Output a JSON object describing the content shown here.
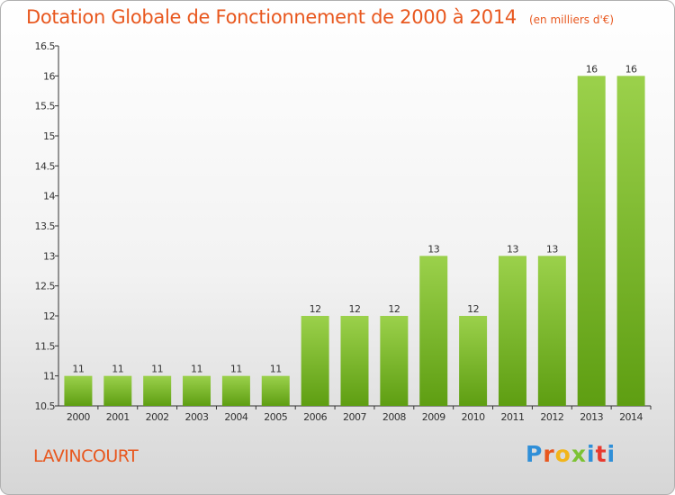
{
  "header": {
    "title": "Dotation Globale de Fonctionnement de 2000 à 2014",
    "unit": "(en milliers d'€)"
  },
  "footer": {
    "commune": "LAVINCOURT",
    "logo_text": "Proxiti"
  },
  "colors": {
    "title": "#e8571e",
    "bar_light": "#9bd14b",
    "bar_dark": "#5e9e12",
    "logo": [
      "#2f8fd8",
      "#e8571e",
      "#f2b51a",
      "#7cc233",
      "#2f8fd8",
      "#e83a2f",
      "#2f8fd8"
    ]
  },
  "chart_data": {
    "type": "bar",
    "categories": [
      "2000",
      "2001",
      "2002",
      "2003",
      "2004",
      "2005",
      "2006",
      "2007",
      "2008",
      "2009",
      "2010",
      "2011",
      "2012",
      "2013",
      "2014"
    ],
    "values": [
      11,
      11,
      11,
      11,
      11,
      11,
      12,
      12,
      12,
      13,
      12,
      13,
      13,
      16,
      16
    ],
    "data_labels": [
      "11",
      "11",
      "11",
      "11",
      "11",
      "11",
      "12",
      "12",
      "12",
      "13",
      "12",
      "13",
      "13",
      "16",
      "16"
    ],
    "ylim": [
      10.5,
      16.5
    ],
    "yticks": [
      10.5,
      11,
      11.5,
      12,
      12.5,
      13,
      13.5,
      14,
      14.5,
      15,
      15.5,
      16,
      16.5
    ],
    "ytick_labels": [
      "10.5",
      "11",
      "11.5",
      "12",
      "12.5",
      "13",
      "13.5",
      "14",
      "14.5",
      "15",
      "15.5",
      "16",
      "16.5"
    ],
    "grid": false,
    "legend": "none"
  }
}
